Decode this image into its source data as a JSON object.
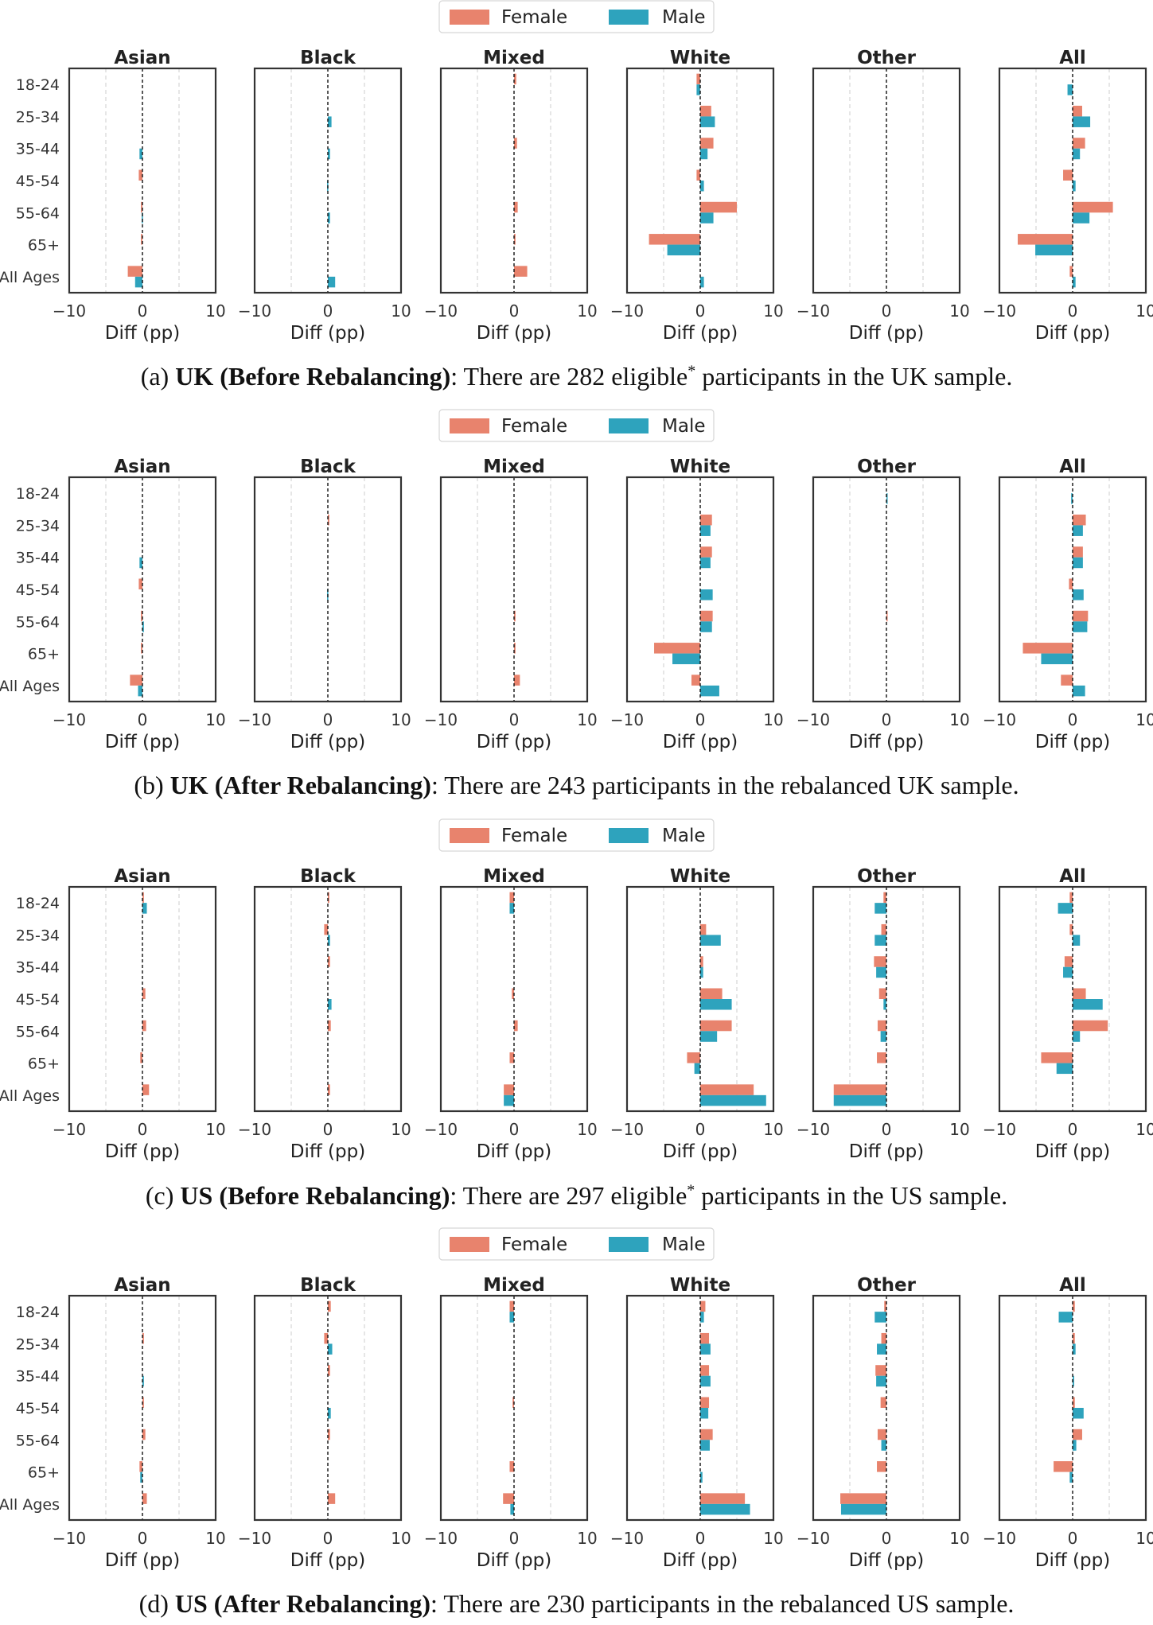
{
  "legend": {
    "female_label": "Female",
    "male_label": "Male"
  },
  "colors": {
    "female": "#e8836d",
    "male": "#2ea3bd",
    "axis": "#333333",
    "grid": "#cccccc"
  },
  "panel_titles": [
    "Asian",
    "Black",
    "Mixed",
    "White",
    "Other",
    "All"
  ],
  "age_groups": [
    "18-24",
    "25-34",
    "35-44",
    "45-54",
    "55-64",
    "65+",
    "All Ages"
  ],
  "xlabel": "Diff (pp)",
  "xticks": [
    "−10",
    "0",
    "10"
  ],
  "captions": [
    {
      "prefix": "(a) ",
      "bold": "UK (Before Rebalancing)",
      "text_pre": ": There are 282 eligible",
      "sup": "*",
      "text_post": " participants in the UK sample."
    },
    {
      "prefix": "(b) ",
      "bold": "UK (After Rebalancing)",
      "text_pre": ": There are 243 participants in the rebalanced UK sample.",
      "sup": "",
      "text_post": ""
    },
    {
      "prefix": "(c) ",
      "bold": "US (Before Rebalancing)",
      "text_pre": ": There are 297 eligible",
      "sup": "*",
      "text_post": " participants in the US sample."
    },
    {
      "prefix": "(d) ",
      "bold": "US (After Rebalancing)",
      "text_pre": ": There are 230 participants in the rebalanced US sample.",
      "sup": "",
      "text_post": ""
    }
  ],
  "chart_data": [
    {
      "type": "bar",
      "figure": "UK (Before Rebalancing)",
      "xlim": [
        -10,
        10
      ],
      "categories": [
        "18-24",
        "25-34",
        "35-44",
        "45-54",
        "55-64",
        "65+",
        "All Ages"
      ],
      "panels": [
        {
          "title": "Asian",
          "female": [
            0,
            0,
            0,
            -0.5,
            -0.2,
            -0.2,
            -2.0
          ],
          "male": [
            0,
            0,
            -0.4,
            0,
            -0.1,
            0,
            -1.0
          ]
        },
        {
          "title": "Black",
          "female": [
            0,
            0,
            0,
            0,
            0,
            0,
            0
          ],
          "male": [
            0,
            0.5,
            0.3,
            -0.1,
            0.3,
            0,
            1.0
          ]
        },
        {
          "title": "Mixed",
          "female": [
            0.3,
            0,
            0.4,
            0,
            0.5,
            0.2,
            1.8
          ],
          "male": [
            0,
            0,
            0,
            0,
            0,
            0,
            0
          ]
        },
        {
          "title": "White",
          "female": [
            -0.5,
            1.5,
            1.8,
            -0.5,
            5.0,
            -7.0,
            0
          ],
          "male": [
            -0.5,
            2.0,
            1.0,
            0.5,
            1.8,
            -4.5,
            0.5
          ]
        },
        {
          "title": "Other",
          "female": [
            0,
            0,
            0,
            0,
            0,
            0,
            0
          ],
          "male": [
            0,
            0,
            0,
            0,
            0,
            0,
            0
          ]
        },
        {
          "title": "All",
          "female": [
            0,
            1.3,
            1.7,
            -1.3,
            5.5,
            -7.5,
            -0.4
          ],
          "male": [
            -0.7,
            2.4,
            1.0,
            0.4,
            2.3,
            -5.1,
            0.4
          ]
        }
      ]
    },
    {
      "type": "bar",
      "figure": "UK (After Rebalancing)",
      "xlim": [
        -10,
        10
      ],
      "categories": [
        "18-24",
        "25-34",
        "35-44",
        "45-54",
        "55-64",
        "65+",
        "All Ages"
      ],
      "panels": [
        {
          "title": "Asian",
          "female": [
            0,
            0,
            0,
            -0.5,
            -0.2,
            -0.2,
            -1.7
          ],
          "male": [
            0,
            0,
            -0.4,
            0,
            0.2,
            0,
            -0.6
          ]
        },
        {
          "title": "Black",
          "female": [
            0,
            0.2,
            0,
            0,
            0,
            0,
            0
          ],
          "male": [
            0,
            0,
            0,
            -0.1,
            0,
            0,
            0
          ]
        },
        {
          "title": "Mixed",
          "female": [
            0,
            0,
            0,
            0,
            0.2,
            0.2,
            0.8
          ],
          "male": [
            0,
            0,
            0,
            0,
            0,
            0,
            0
          ]
        },
        {
          "title": "White",
          "female": [
            0,
            1.6,
            1.6,
            0,
            1.7,
            -6.3,
            -1.2
          ],
          "male": [
            0,
            1.4,
            1.4,
            1.7,
            1.6,
            -3.8,
            2.6
          ]
        },
        {
          "title": "Other",
          "female": [
            0,
            0,
            0,
            0,
            0.1,
            0,
            0
          ],
          "male": [
            0.1,
            0,
            0,
            0,
            0,
            0,
            0
          ]
        },
        {
          "title": "All",
          "female": [
            0,
            1.8,
            1.4,
            -0.5,
            2.1,
            -6.8,
            -1.6
          ],
          "male": [
            -0.2,
            1.4,
            1.4,
            1.5,
            2.0,
            -4.3,
            1.7
          ]
        }
      ]
    },
    {
      "type": "bar",
      "figure": "US (Before Rebalancing)",
      "xlim": [
        -10,
        10
      ],
      "categories": [
        "18-24",
        "25-34",
        "35-44",
        "45-54",
        "55-64",
        "65+",
        "All Ages"
      ],
      "panels": [
        {
          "title": "Asian",
          "female": [
            0.2,
            0,
            0,
            0.4,
            0.5,
            -0.3,
            0.9
          ],
          "male": [
            0.6,
            0,
            0,
            0,
            0,
            0,
            0
          ]
        },
        {
          "title": "Black",
          "female": [
            0.2,
            -0.5,
            0.3,
            0,
            0.4,
            0,
            0.3
          ],
          "male": [
            0,
            0.3,
            0,
            0.5,
            0,
            0,
            0
          ]
        },
        {
          "title": "Mixed",
          "female": [
            -0.6,
            0,
            0,
            -0.3,
            0.5,
            -0.6,
            -1.4
          ],
          "male": [
            -0.6,
            0,
            0,
            0,
            0,
            0,
            -1.4
          ]
        },
        {
          "title": "White",
          "female": [
            0,
            0.8,
            0.4,
            3.0,
            4.3,
            -1.8,
            7.3
          ],
          "male": [
            0,
            2.8,
            0.4,
            4.3,
            2.3,
            -0.8,
            9.0
          ]
        },
        {
          "title": "Other",
          "female": [
            -0.4,
            -0.7,
            -1.7,
            -1.0,
            -1.2,
            -1.3,
            -7.2
          ],
          "male": [
            -1.6,
            -1.6,
            -1.4,
            -0.4,
            -0.8,
            0,
            -7.2
          ]
        },
        {
          "title": "All",
          "female": [
            -0.4,
            -0.4,
            -1.1,
            1.8,
            4.8,
            -4.3,
            0
          ],
          "male": [
            -2.0,
            1.0,
            -1.3,
            4.1,
            1.0,
            -2.2,
            0
          ]
        }
      ]
    },
    {
      "type": "bar",
      "figure": "US (After Rebalancing)",
      "xlim": [
        -10,
        10
      ],
      "categories": [
        "18-24",
        "25-34",
        "35-44",
        "45-54",
        "55-64",
        "65+",
        "All Ages"
      ],
      "panels": [
        {
          "title": "Asian",
          "female": [
            0,
            0.2,
            0,
            0.2,
            0.4,
            -0.4,
            0.6
          ],
          "male": [
            0,
            0,
            0.2,
            0,
            0,
            -0.3,
            0
          ]
        },
        {
          "title": "Black",
          "female": [
            0.4,
            -0.5,
            0.3,
            0,
            0.3,
            0,
            1.0
          ],
          "male": [
            0,
            0.6,
            0,
            0.4,
            0,
            0,
            0
          ]
        },
        {
          "title": "Mixed",
          "female": [
            -0.6,
            0,
            0,
            -0.2,
            0,
            -0.6,
            -1.5
          ],
          "male": [
            -0.6,
            0,
            0,
            0,
            0,
            0,
            -0.5
          ]
        },
        {
          "title": "White",
          "female": [
            0.7,
            1.2,
            1.2,
            1.2,
            1.7,
            0,
            6.1
          ],
          "male": [
            0.5,
            1.4,
            1.4,
            1.1,
            1.3,
            0.3,
            6.8
          ]
        },
        {
          "title": "Other",
          "female": [
            -0.3,
            -0.7,
            -1.5,
            -0.8,
            -1.2,
            -1.3,
            -6.3
          ],
          "male": [
            -1.6,
            -1.3,
            -1.4,
            0,
            -0.7,
            0,
            -6.2
          ]
        },
        {
          "title": "All",
          "female": [
            0.3,
            0.3,
            0,
            0.3,
            1.3,
            -2.6,
            0
          ],
          "male": [
            -1.9,
            0.4,
            0.2,
            1.5,
            0.5,
            -0.4,
            0
          ]
        }
      ]
    }
  ]
}
